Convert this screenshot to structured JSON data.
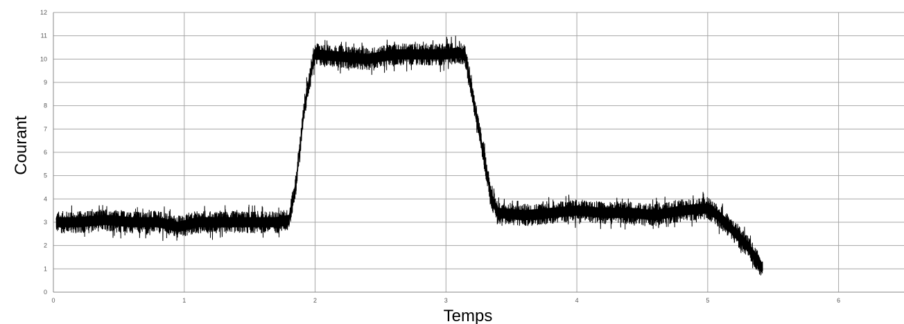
{
  "chart_data": {
    "type": "line",
    "title": "",
    "xlabel": "Temps",
    "ylabel": "Courant",
    "xlim": [
      0,
      6.5
    ],
    "ylim": [
      0,
      12
    ],
    "x_ticks": [
      0,
      1,
      2,
      3,
      4,
      5,
      6
    ],
    "y_ticks": [
      0,
      1,
      2,
      3,
      4,
      5,
      6,
      7,
      8,
      9,
      10,
      11,
      12
    ],
    "grid": true,
    "legend": "none",
    "colors": {
      "series": "#000000",
      "grid": "#a6a6a6",
      "tick_text": "#595959"
    },
    "series": [
      {
        "x": [
          0.02,
          0.2,
          0.4,
          0.6,
          0.8,
          0.95,
          1.1,
          1.3,
          1.5,
          1.7,
          1.8,
          1.85,
          1.88,
          1.92,
          1.97,
          2.0,
          2.2,
          2.4,
          2.6,
          2.8,
          3.0,
          3.1,
          3.15,
          3.2,
          3.25,
          3.3,
          3.35,
          3.4,
          3.6,
          3.8,
          4.0,
          4.2,
          4.4,
          4.6,
          4.8,
          5.0,
          5.1,
          5.2,
          5.3,
          5.4,
          5.42
        ],
        "y": [
          3.0,
          3.0,
          3.1,
          3.0,
          3.0,
          2.8,
          3.0,
          3.0,
          3.0,
          3.0,
          3.1,
          4.5,
          6.0,
          8.0,
          9.5,
          10.2,
          10.1,
          10.0,
          10.2,
          10.2,
          10.2,
          10.3,
          10.1,
          8.5,
          7.0,
          5.5,
          4.0,
          3.4,
          3.3,
          3.4,
          3.5,
          3.4,
          3.4,
          3.3,
          3.5,
          3.6,
          3.2,
          2.6,
          2.0,
          1.2,
          1.0
        ],
        "noise": [
          0.4,
          0.4,
          0.4,
          0.4,
          0.4,
          0.4,
          0.4,
          0.4,
          0.4,
          0.4,
          0.4,
          0.4,
          0.4,
          0.4,
          0.4,
          0.4,
          0.4,
          0.4,
          0.4,
          0.4,
          0.4,
          0.4,
          0.4,
          0.4,
          0.4,
          0.4,
          0.4,
          0.4,
          0.4,
          0.4,
          0.4,
          0.4,
          0.4,
          0.4,
          0.4,
          0.4,
          0.4,
          0.4,
          0.4,
          0.4,
          0.4
        ]
      }
    ]
  }
}
